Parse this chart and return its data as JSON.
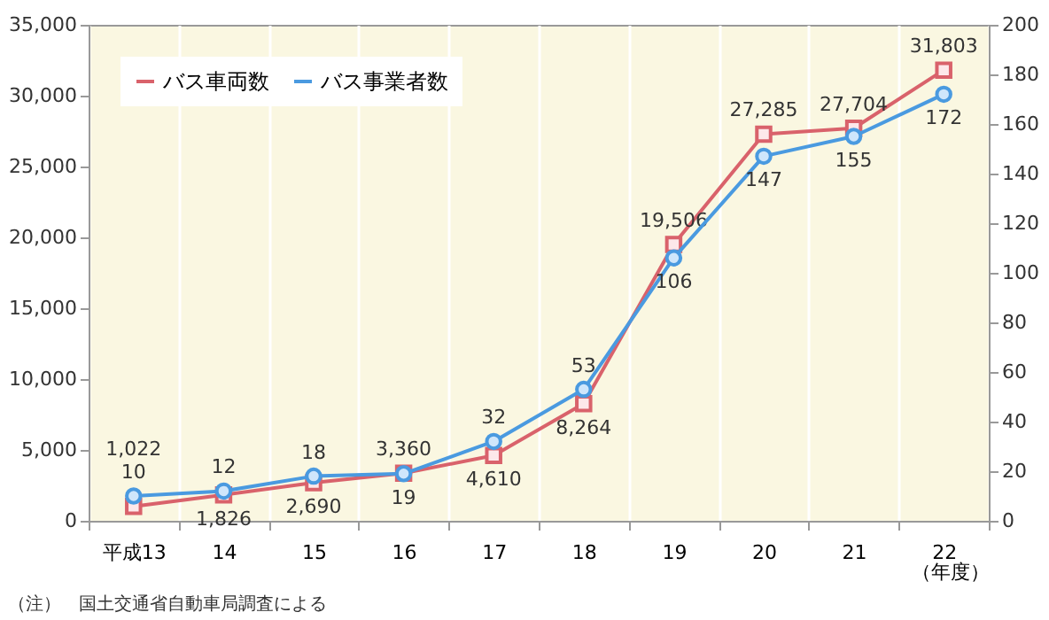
{
  "chart_data": {
    "type": "line",
    "categories": [
      "平成13",
      "14",
      "15",
      "16",
      "17",
      "18",
      "19",
      "20",
      "21",
      "22"
    ],
    "xlabel": "（年度）",
    "series": [
      {
        "name": "バス車両数",
        "color": "#d9626b",
        "marker": "square",
        "values": [
          1022,
          1826,
          2690,
          3360,
          4610,
          8264,
          19506,
          27285,
          27704,
          31803
        ],
        "value_labels": [
          "1,022",
          "1,826",
          "2,690",
          "3,360",
          "4,610",
          "8,264",
          "19,506",
          "27,285",
          "27,704",
          "31,803"
        ]
      },
      {
        "name": "バス事業者数",
        "color": "#4a9ae0",
        "marker": "circle",
        "axis": "y2",
        "values": [
          10,
          12,
          18,
          19,
          32,
          53,
          106,
          147,
          155,
          172
        ],
        "value_labels": [
          "10",
          "12",
          "18",
          "19",
          "32",
          "53",
          "106",
          "147",
          "155",
          "172"
        ]
      }
    ],
    "ylim": [
      0,
      35000
    ],
    "yticks": [
      0,
      {
        "value": 5000,
        "label": "5,000"
      },
      {
        "value": 10000,
        "label": "10,000"
      },
      {
        "value": 15000,
        "label": "15,000"
      },
      {
        "value": 20000,
        "label": "20,000"
      },
      {
        "value": 25000,
        "label": "25,000"
      },
      {
        "value": 30000,
        "label": "30,000"
      },
      {
        "value": 35000,
        "label": "35,000"
      }
    ],
    "y2lim": [
      0,
      200
    ],
    "y2ticks": [
      0,
      20,
      40,
      60,
      80,
      100,
      120,
      140,
      160,
      180,
      200
    ],
    "grid": "x",
    "legend": "top left",
    "annotations": [
      "（注）　国土交通省自動車局調査による"
    ]
  }
}
